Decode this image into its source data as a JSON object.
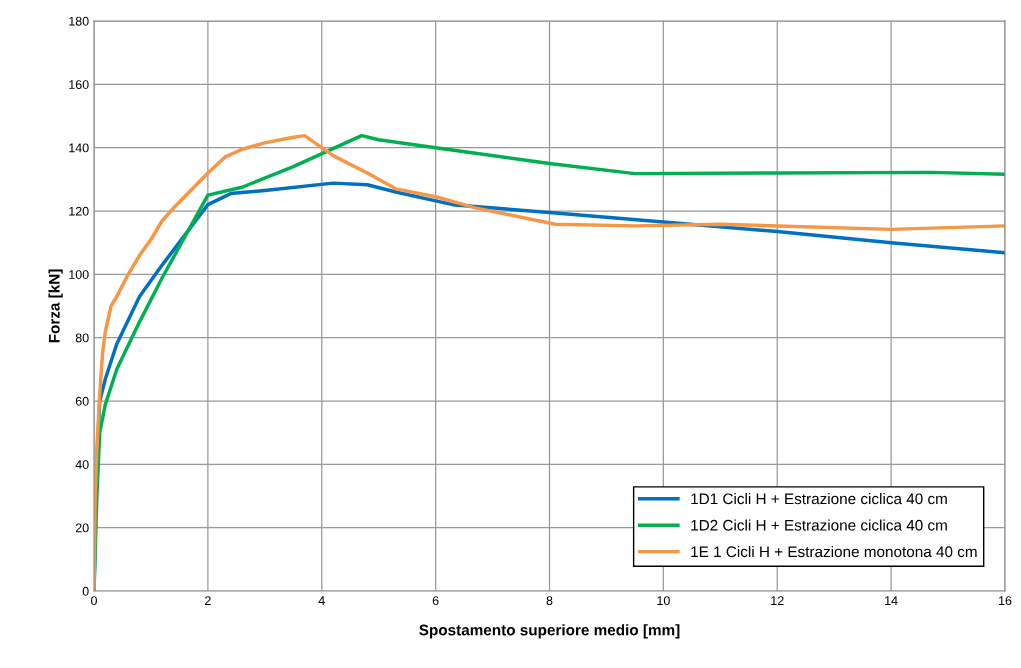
{
  "chart_data": {
    "type": "line",
    "xlabel": "Spostamento superiore medio [mm]",
    "ylabel": "Forza [kN]",
    "xlim": [
      0,
      16
    ],
    "ylim": [
      0,
      180
    ],
    "xticks": [
      0,
      2,
      4,
      6,
      8,
      10,
      12,
      14,
      16
    ],
    "yticks": [
      0,
      20,
      40,
      60,
      80,
      100,
      120,
      140,
      160,
      180
    ],
    "grid": true,
    "legend": "bottom right",
    "marker": "none",
    "line_style": "solid",
    "series": [
      {
        "name": "1D1 Cicli H + Estrazione ciclica 40 cm",
        "color": "#0070c0",
        "x": [
          0,
          0.05,
          0.1,
          0.2,
          0.4,
          0.8,
          1.2,
          2,
          2.4,
          3,
          4.2,
          4.8,
          5.3,
          6.3,
          8,
          10,
          12,
          14,
          16
        ],
        "values": [
          0,
          40,
          60,
          67,
          78,
          93,
          103,
          122,
          125.5,
          126.5,
          128.8,
          128.3,
          126,
          122,
          119.5,
          116.5,
          113.5,
          110,
          106.8
        ]
      },
      {
        "name": "1D2 Cicli H + Estrazione ciclica 40 cm",
        "color": "#00b050",
        "x": [
          0,
          0.05,
          0.1,
          0.2,
          0.4,
          0.8,
          1.2,
          2,
          2.6,
          3.5,
          4.7,
          5,
          6,
          8,
          9.5,
          12,
          14.7,
          16
        ],
        "values": [
          0,
          30,
          50,
          59,
          70,
          85,
          99,
          125,
          127.5,
          134,
          143.8,
          142.5,
          140,
          135,
          131.8,
          132,
          132.2,
          131.6
        ]
      },
      {
        "name": "1E 1 Cicli H + Estrazione monotona 40 cm",
        "color": "#f79646",
        "x": [
          0,
          0.02,
          0.05,
          0.1,
          0.15,
          0.2,
          0.3,
          0.4,
          0.6,
          0.8,
          1.0,
          1.2,
          1.4,
          1.7,
          2,
          2.3,
          2.6,
          3,
          3.5,
          3.7,
          4.2,
          4.8,
          5.3,
          6,
          6.7,
          8.1,
          9.5,
          11,
          14,
          16
        ],
        "values": [
          0,
          30,
          45,
          62,
          75,
          82,
          90,
          93,
          100,
          106,
          111,
          117,
          121,
          126.5,
          132,
          137,
          139.5,
          141.5,
          143.3,
          143.8,
          137.5,
          132,
          127,
          124.5,
          121,
          115.8,
          115.3,
          115.8,
          114.2,
          115.3
        ]
      }
    ]
  }
}
